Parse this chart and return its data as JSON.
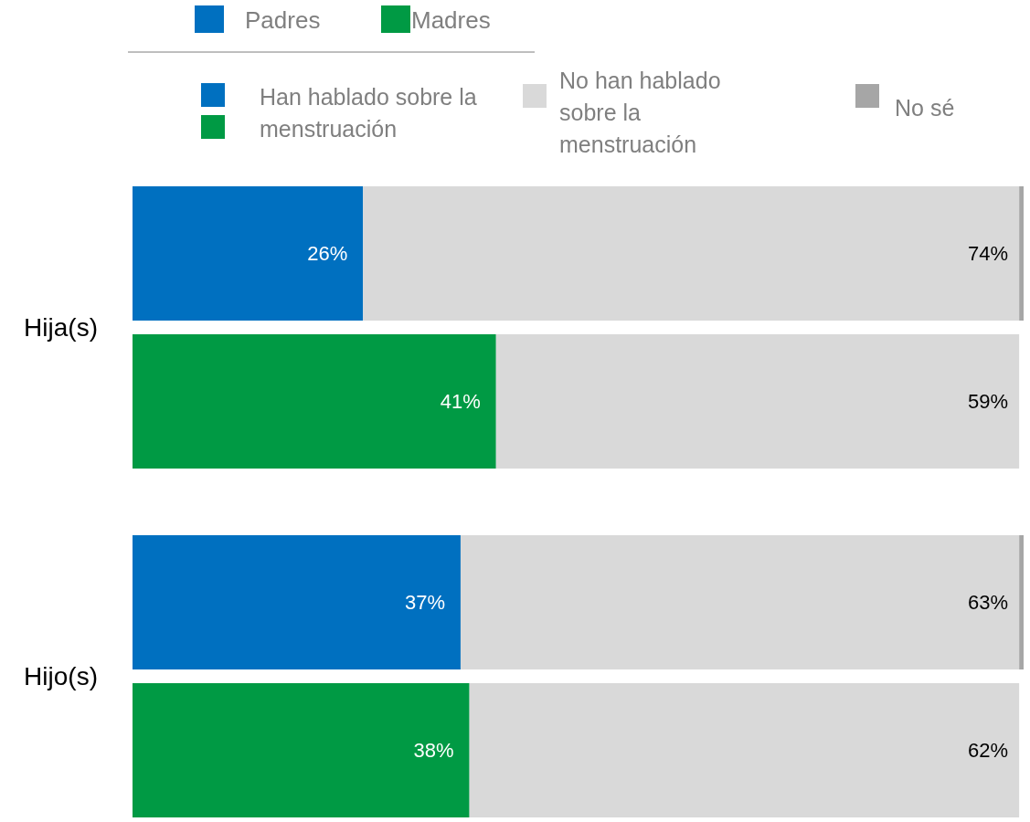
{
  "chart_data": [
    {
      "type": "bar",
      "orientation": "horizontal",
      "stacked": true,
      "ylabel": "Hija(s)",
      "categories": [
        null,
        null
      ],
      "series": [
        {
          "name": "Padres",
          "color": "#0070c0",
          "values": [
            26,
            null
          ],
          "value_labels": [
            "26%",
            null
          ]
        },
        {
          "name": "Madres",
          "color": "#009a44",
          "values": [
            null,
            41
          ],
          "value_labels": [
            null,
            "41%"
          ]
        },
        {
          "name": "No han hablado sobre la menstruación",
          "color": "#d9d9d9",
          "values": [
            74,
            59
          ],
          "value_labels": [
            "74%",
            "59%"
          ]
        },
        {
          "name": "No sé",
          "color": "#a6a6a6",
          "values": [
            0.5,
            null
          ]
        }
      ],
      "annotations": [
        "Han hablado sobre la menstruación"
      ],
      "xlim": [
        0,
        100.5
      ],
      "legend": "top"
    },
    {
      "type": "bar",
      "orientation": "horizontal",
      "stacked": true,
      "ylabel": "Hijo(s)",
      "categories": [
        null,
        null
      ],
      "series": [
        {
          "color": "#0070c0",
          "values": [
            37,
            null
          ],
          "value_labels": [
            "37%",
            null
          ]
        },
        {
          "color": "#009a44",
          "values": [
            null,
            38
          ],
          "value_labels": [
            null,
            "38%"
          ]
        },
        {
          "color": "#d9d9d9",
          "values": [
            63,
            62
          ],
          "value_labels": [
            "63%",
            "62%"
          ]
        },
        {
          "color": "#a6a6a6",
          "values": [
            0.5,
            null
          ]
        }
      ],
      "xlim": [
        0,
        100.5
      ]
    }
  ]
}
